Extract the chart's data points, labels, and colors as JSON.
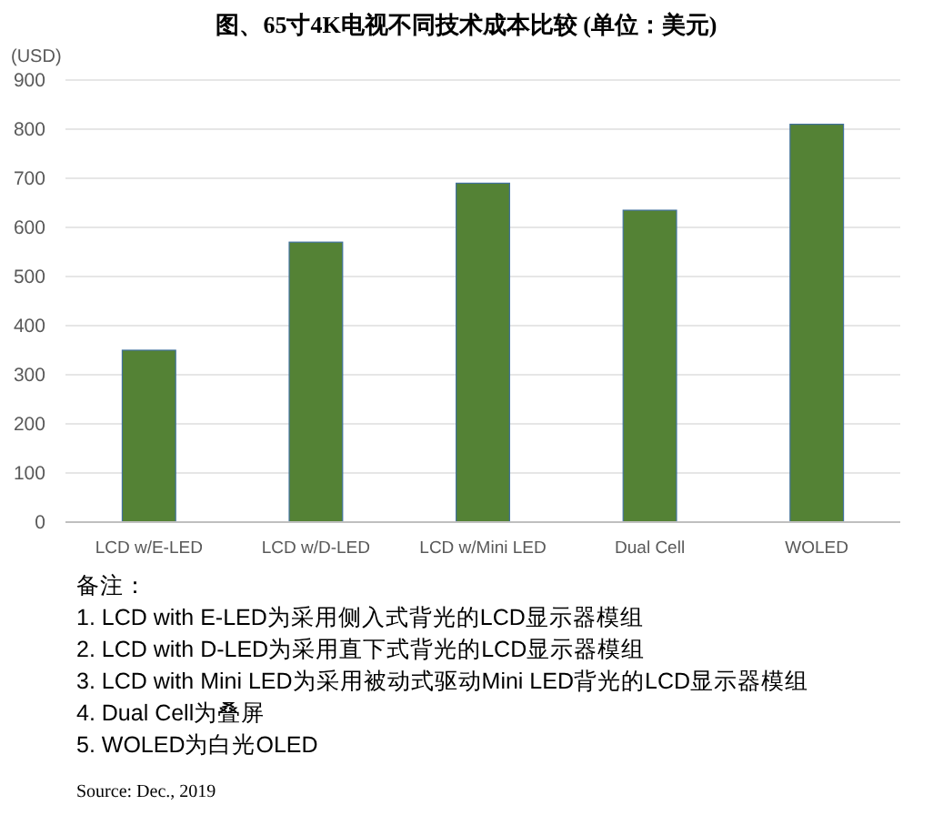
{
  "chart_data": {
    "type": "bar",
    "title": "图、65寸4K电视不同技术成本比较 (单位：美元)",
    "ylabel": "(USD)",
    "categories": [
      "LCD w/E-LED",
      "LCD w/D-LED",
      "LCD w/Mini LED",
      "Dual Cell",
      "WOLED"
    ],
    "values": [
      350,
      570,
      690,
      635,
      810
    ],
    "color": "#548235",
    "ylim": [
      0,
      900
    ],
    "yticks": [
      0,
      100,
      200,
      300,
      400,
      500,
      600,
      700,
      800,
      900
    ],
    "grid": "y",
    "annotations": [
      "备注：",
      "1. LCD with E-LED为采用侧入式背光的LCD显示器模组",
      "2. LCD with D-LED为采用直下式背光的LCD显示器模组",
      "3. LCD with Mini LED为采用被动式驱动Mini LED背光的LCD显示器模组",
      "4. Dual Cell为叠屏",
      "5. WOLED为白光OLED",
      "Source: Dec., 2019"
    ]
  }
}
